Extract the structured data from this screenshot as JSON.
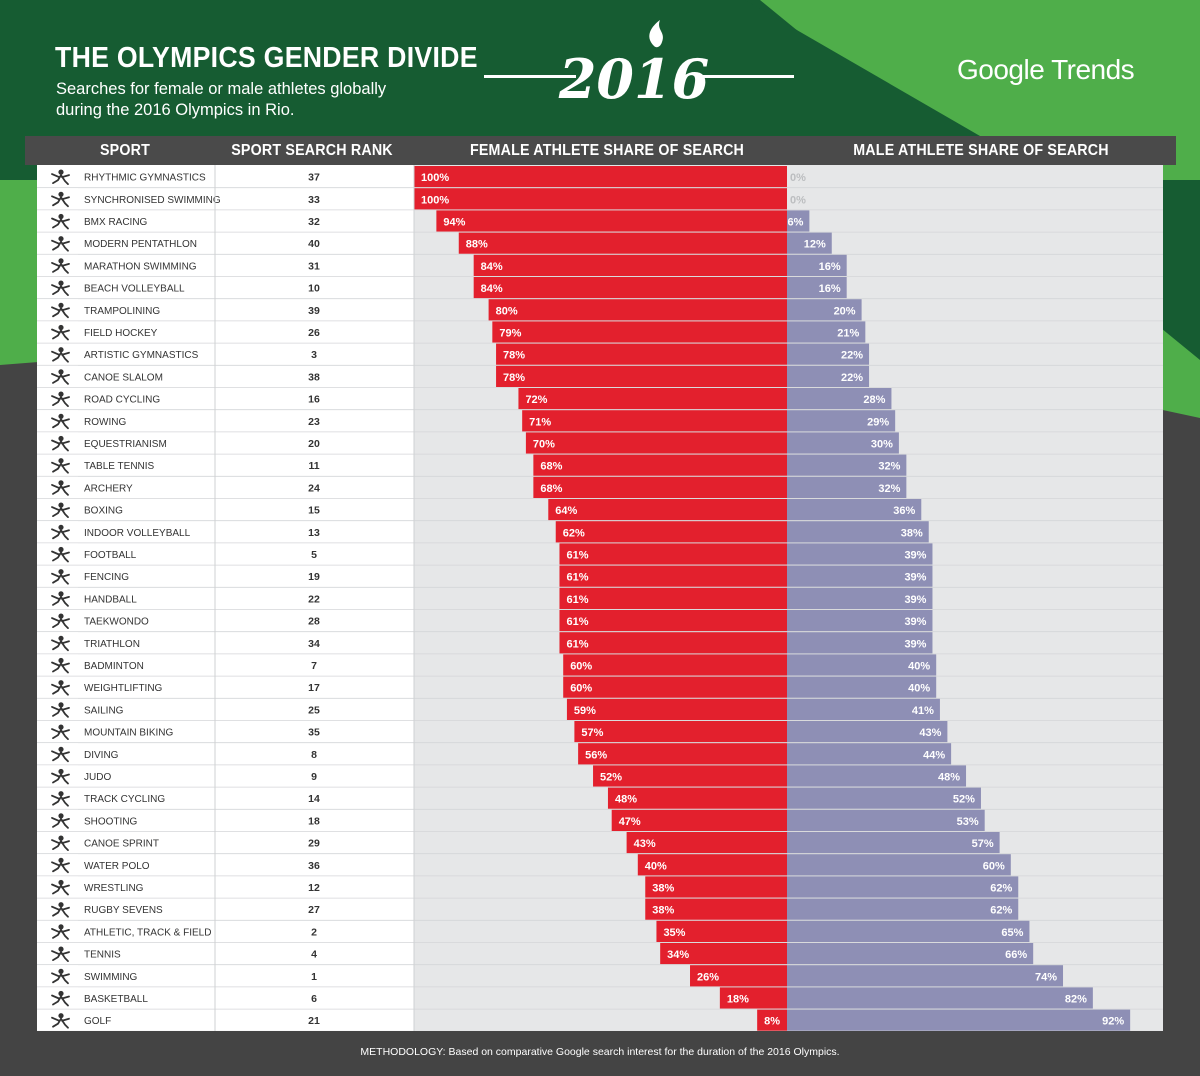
{
  "header": {
    "title": "THE OLYMPICS GENDER DIVIDE",
    "subtitle": "Searches for female or male athletes globally during the 2016 Olympics in Rio.",
    "year_logo": "2016",
    "brand": "Google Trends"
  },
  "footer": {
    "methodology": "METHODOLOGY: Based on comparative Google search interest for the duration of the 2016 Olympics."
  },
  "colors": {
    "female": "#e3202d",
    "male": "#8e8fb5",
    "dark_green": "#165c32",
    "light_green": "#4fae4a",
    "dark_gray": "#444444",
    "header_bar": "#4a4a4a",
    "bar_background": "#e6e7e8"
  },
  "chart_data": {
    "type": "bar",
    "columns": [
      "SPORT",
      "SPORT SEARCH RANK",
      "FEMALE ATHLETE SHARE OF SEARCH",
      "MALE ATHLETE SHARE OF SEARCH"
    ],
    "categories": [
      "RHYTHMIC GYMNASTICS",
      "SYNCHRONISED SWIMMING",
      "BMX RACING",
      "MODERN PENTATHLON",
      "MARATHON SWIMMING",
      "BEACH VOLLEYBALL",
      "TRAMPOLINING",
      "FIELD HOCKEY",
      "ARTISTIC GYMNASTICS",
      "CANOE SLALOM",
      "ROAD CYCLING",
      "ROWING",
      "EQUESTRIANISM",
      "TABLE TENNIS",
      "ARCHERY",
      "BOXING",
      "INDOOR VOLLEYBALL",
      "FOOTBALL",
      "FENCING",
      "HANDBALL",
      "TAEKWONDO",
      "TRIATHLON",
      "BADMINTON",
      "WEIGHTLIFTING",
      "SAILING",
      "MOUNTAIN BIKING",
      "DIVING",
      "JUDO",
      "TRACK CYCLING",
      "SHOOTING",
      "CANOE SPRINT",
      "WATER POLO",
      "WRESTLING",
      "RUGBY SEVENS",
      "ATHLETIC, TRACK & FIELD",
      "TENNIS",
      "SWIMMING",
      "BASKETBALL",
      "GOLF"
    ],
    "ranks": [
      37,
      33,
      32,
      40,
      31,
      10,
      39,
      26,
      3,
      38,
      16,
      23,
      20,
      11,
      24,
      15,
      13,
      5,
      19,
      22,
      28,
      34,
      7,
      17,
      25,
      35,
      8,
      9,
      14,
      18,
      29,
      36,
      12,
      27,
      2,
      4,
      1,
      6,
      21
    ],
    "series": [
      {
        "name": "FEMALE ATHLETE SHARE OF SEARCH",
        "values": [
          100,
          100,
          94,
          88,
          84,
          84,
          80,
          79,
          78,
          78,
          72,
          71,
          70,
          68,
          68,
          64,
          62,
          61,
          61,
          61,
          61,
          61,
          60,
          60,
          59,
          57,
          56,
          52,
          48,
          47,
          43,
          40,
          38,
          38,
          35,
          34,
          26,
          18,
          8
        ]
      },
      {
        "name": "MALE ATHLETE SHARE OF SEARCH",
        "values": [
          0,
          0,
          6,
          12,
          16,
          16,
          20,
          21,
          22,
          22,
          28,
          29,
          30,
          32,
          32,
          36,
          38,
          39,
          39,
          39,
          39,
          39,
          40,
          40,
          41,
          43,
          44,
          48,
          52,
          53,
          57,
          60,
          62,
          62,
          65,
          66,
          74,
          82,
          92
        ]
      }
    ],
    "unit": "%",
    "ylim": [
      0,
      100
    ]
  }
}
